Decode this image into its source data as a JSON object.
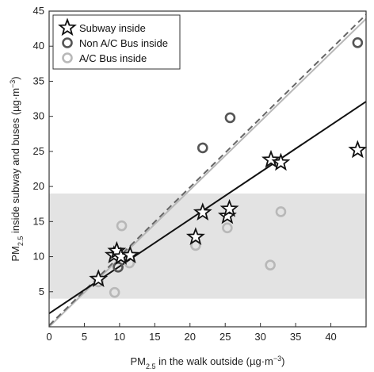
{
  "chart_data": {
    "type": "scatter",
    "xlabel": {
      "main": "PM",
      "sub": "2.5",
      "rest": " in the walk outside (µg·m",
      "sup": "−3",
      "end": ")"
    },
    "ylabel": {
      "main": "PM",
      "sub": "2.5",
      "rest": " inside subway and buses (µg·m",
      "sup": "−3",
      "end": ")"
    },
    "xlim": [
      0,
      45
    ],
    "ylim": [
      0,
      45
    ],
    "xticks": [
      "0",
      "5",
      "10",
      "15",
      "20",
      "25",
      "30",
      "35",
      "40"
    ],
    "yticks": [
      "5",
      "10",
      "15",
      "20",
      "25",
      "30",
      "35",
      "40",
      "45"
    ],
    "shaded_band": [
      4,
      19
    ],
    "grid": false,
    "legend_position": "top-left",
    "series": [
      {
        "name": "Subway inside",
        "marker": "star",
        "color": "#111111",
        "points": [
          [
            7,
            6.8
          ],
          [
            9.2,
            10.2
          ],
          [
            9.6,
            10.8
          ],
          [
            10.2,
            10.0
          ],
          [
            11.5,
            10.2
          ],
          [
            20.8,
            12.8
          ],
          [
            21.8,
            16.3
          ],
          [
            25.3,
            15.8
          ],
          [
            25.6,
            16.8
          ],
          [
            31.5,
            23.8
          ],
          [
            32.9,
            23.4
          ],
          [
            43.8,
            25.2
          ]
        ],
        "fit": {
          "x": [
            0,
            45
          ],
          "y": [
            1.9,
            32.1
          ],
          "style": "solid",
          "color": "#111111"
        }
      },
      {
        "name": "Non A/C Bus inside",
        "marker": "circle",
        "color": "#555555",
        "points": [
          [
            9.8,
            8.5
          ],
          [
            21.8,
            25.5
          ],
          [
            25.7,
            29.8
          ],
          [
            43.8,
            40.5
          ]
        ],
        "fit": {
          "x": [
            0,
            45
          ],
          "y": [
            0.2,
            44.5
          ],
          "style": "dashed",
          "color": "#666666"
        }
      },
      {
        "name": "A/C Bus inside",
        "marker": "circle",
        "color": "#b8b8b8",
        "points": [
          [
            7.0,
            6.4
          ],
          [
            9.3,
            4.9
          ],
          [
            10.3,
            14.4
          ],
          [
            11.4,
            9.1
          ],
          [
            20.8,
            11.6
          ],
          [
            25.3,
            14.1
          ],
          [
            31.4,
            8.8
          ],
          [
            32.9,
            16.4
          ]
        ],
        "fit": {
          "x": [
            0,
            45
          ],
          "y": [
            0,
            43.9
          ],
          "style": "solid",
          "color": "#b8b8b8"
        }
      }
    ]
  }
}
